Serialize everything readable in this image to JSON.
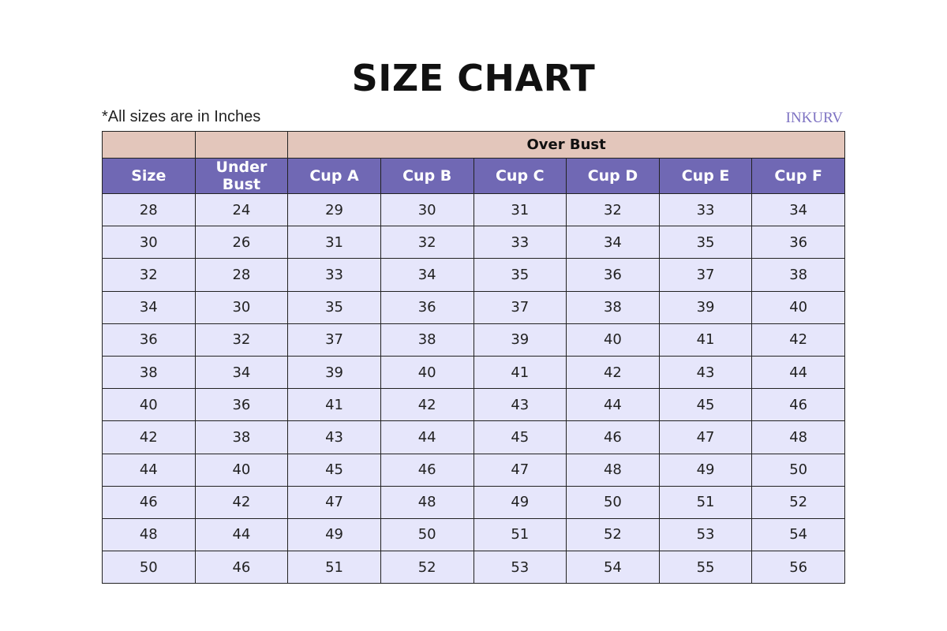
{
  "title": "SIZE CHART",
  "note": "*All sizes are in Inches",
  "logo": "INKURV",
  "colors": {
    "group_header": "#e3c6bb",
    "column_header": "#7068b4",
    "row": "#e6e6fb"
  },
  "group_header": "Over Bust",
  "columns": [
    "Size",
    "Under Bust",
    "Cup A",
    "Cup B",
    "Cup C",
    "Cup D",
    "Cup E",
    "Cup F"
  ],
  "rows": [
    [
      "28",
      "24",
      "29",
      "30",
      "31",
      "32",
      "33",
      "34"
    ],
    [
      "30",
      "26",
      "31",
      "32",
      "33",
      "34",
      "35",
      "36"
    ],
    [
      "32",
      "28",
      "33",
      "34",
      "35",
      "36",
      "37",
      "38"
    ],
    [
      "34",
      "30",
      "35",
      "36",
      "37",
      "38",
      "39",
      "40"
    ],
    [
      "36",
      "32",
      "37",
      "38",
      "39",
      "40",
      "41",
      "42"
    ],
    [
      "38",
      "34",
      "39",
      "40",
      "41",
      "42",
      "43",
      "44"
    ],
    [
      "40",
      "36",
      "41",
      "42",
      "43",
      "44",
      "45",
      "46"
    ],
    [
      "42",
      "38",
      "43",
      "44",
      "45",
      "46",
      "47",
      "48"
    ],
    [
      "44",
      "40",
      "45",
      "46",
      "47",
      "48",
      "49",
      "50"
    ],
    [
      "46",
      "42",
      "47",
      "48",
      "49",
      "50",
      "51",
      "52"
    ],
    [
      "48",
      "44",
      "49",
      "50",
      "51",
      "52",
      "53",
      "54"
    ],
    [
      "50",
      "46",
      "51",
      "52",
      "53",
      "54",
      "55",
      "56"
    ]
  ]
}
